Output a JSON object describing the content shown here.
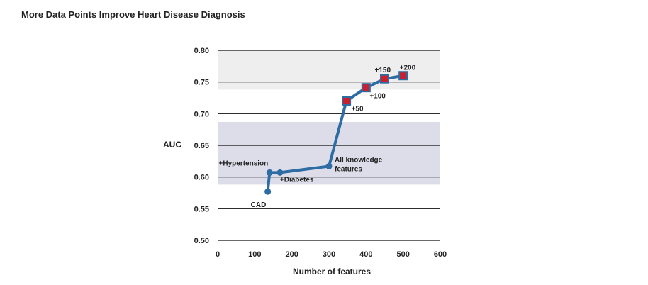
{
  "chart_data": {
    "type": "line",
    "title": "More Data Points Improve Heart Disease Diagnosis",
    "xlabel": "Number of features",
    "ylabel": "AUC",
    "xlim": [
      0,
      600
    ],
    "ylim": [
      0.5,
      0.8
    ],
    "xticks": [
      "0",
      "100",
      "200",
      "300",
      "400",
      "500",
      "600"
    ],
    "yticks": [
      "0.50",
      "0.55",
      "0.60",
      "0.65",
      "0.70",
      "0.75",
      "0.80"
    ],
    "grid": "horizontal",
    "shaded_bands": [
      {
        "y0": 0.588,
        "y1": 0.687,
        "color": "#dcdde9"
      },
      {
        "y0": 0.738,
        "y1": 0.8,
        "color": "#eeeeee"
      }
    ],
    "series": [
      {
        "x": [
          135,
          140,
          168,
          300,
          347,
          400,
          450,
          500
        ],
        "y": [
          0.577,
          0.607,
          0.607,
          0.617,
          0.72,
          0.741,
          0.755,
          0.76
        ],
        "markers": [
          "circle",
          "circle",
          "circle",
          "circle",
          "square",
          "square",
          "square",
          "square"
        ],
        "labels": [
          "CAD",
          "+Hypertension",
          "+Diabetes",
          "All knowledge features",
          "+50",
          "+100",
          "+150",
          "+200"
        ]
      }
    ],
    "line_color": "#2e6da4",
    "square_fill": "#c8202f"
  }
}
